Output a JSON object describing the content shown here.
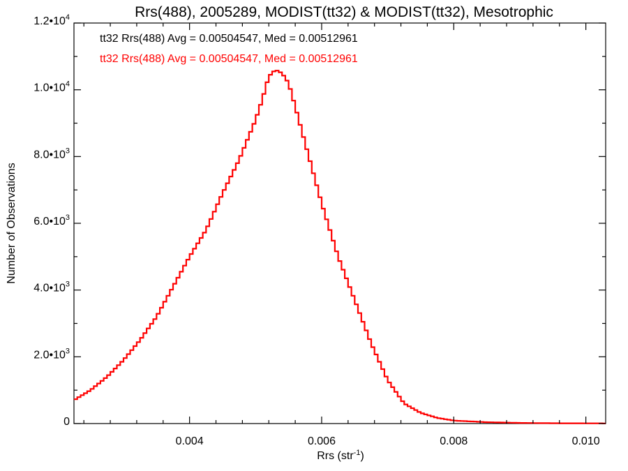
{
  "chart_data": {
    "type": "line",
    "title": "Rrs(488), 2005289, MODIST(tt32) & MODIST(tt32), Mesotrophic",
    "xlabel": "Rrs (str",
    "xlabel_sup": "-1",
    "xlabel_suffix": ")",
    "ylabel": "Number of Observations",
    "xlim": [
      0.00225,
      0.0103
    ],
    "ylim": [
      0,
      12000
    ],
    "x_ticks": [
      {
        "value": 0.004,
        "label": "0.004"
      },
      {
        "value": 0.006,
        "label": "0.006"
      },
      {
        "value": 0.008,
        "label": "0.008"
      },
      {
        "value": 0.01,
        "label": "0.010"
      }
    ],
    "x_minor_step": 0.0004,
    "y_ticks": [
      {
        "value": 0,
        "label": "0",
        "exp": ""
      },
      {
        "value": 2000,
        "label": "2.0•10",
        "exp": "3"
      },
      {
        "value": 4000,
        "label": "4.0•10",
        "exp": "3"
      },
      {
        "value": 6000,
        "label": "6.0•10",
        "exp": "3"
      },
      {
        "value": 8000,
        "label": "8.0•10",
        "exp": "3"
      },
      {
        "value": 10000,
        "label": "1.0•10",
        "exp": "4"
      },
      {
        "value": 12000,
        "label": "1.2•10",
        "exp": "4"
      }
    ],
    "y_minor_step": 1000,
    "grid": false,
    "legend_position": "top-left",
    "series": [
      {
        "name": "tt32 Rrs(488) Avg = 0.00504547, Med = 0.00512961",
        "color": "#000000",
        "x": [
          0.00225,
          0.0025,
          0.00275,
          0.003,
          0.00325,
          0.0035,
          0.00375,
          0.004,
          0.00425,
          0.0045,
          0.00475,
          0.005,
          0.0051,
          0.0052,
          0.0053,
          0.0054,
          0.0055,
          0.0056,
          0.00575,
          0.006,
          0.00625,
          0.0065,
          0.00675,
          0.007,
          0.00725,
          0.0075,
          0.00775,
          0.008,
          0.0085,
          0.009,
          0.0095,
          0.0103
        ],
        "y": [
          700,
          1000,
          1400,
          1900,
          2500,
          3200,
          4100,
          5000,
          5800,
          6900,
          7900,
          9100,
          9700,
          10400,
          10600,
          10500,
          10200,
          9500,
          8400,
          6600,
          5000,
          3700,
          2400,
          1300,
          600,
          320,
          170,
          90,
          40,
          20,
          10,
          5
        ]
      },
      {
        "name": "tt32 Rrs(488) Avg = 0.00504547, Med = 0.00512961",
        "color": "#ff0000",
        "x": [
          0.00225,
          0.0025,
          0.00275,
          0.003,
          0.00325,
          0.0035,
          0.00375,
          0.004,
          0.00425,
          0.0045,
          0.00475,
          0.005,
          0.0051,
          0.0052,
          0.0053,
          0.0054,
          0.0055,
          0.0056,
          0.00575,
          0.006,
          0.00625,
          0.0065,
          0.00675,
          0.007,
          0.00725,
          0.0075,
          0.00775,
          0.008,
          0.0085,
          0.009,
          0.0095,
          0.0103
        ],
        "y": [
          700,
          1000,
          1400,
          1900,
          2500,
          3200,
          4100,
          5000,
          5800,
          6900,
          7900,
          9100,
          9700,
          10400,
          10600,
          10500,
          10200,
          9500,
          8400,
          6600,
          5000,
          3700,
          2400,
          1300,
          600,
          320,
          170,
          90,
          40,
          20,
          10,
          5
        ]
      }
    ]
  }
}
